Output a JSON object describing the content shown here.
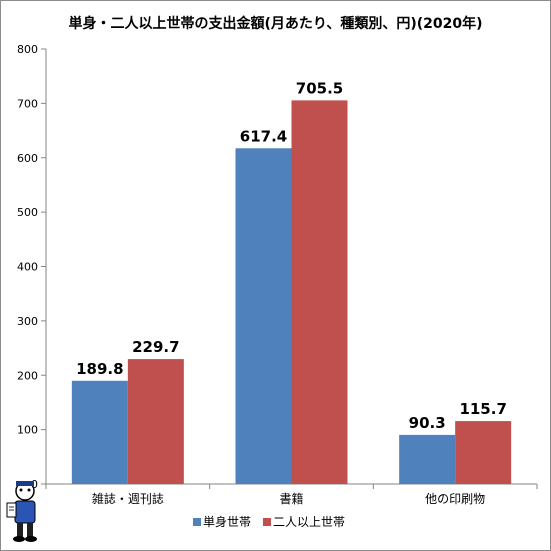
{
  "chart_data": {
    "type": "bar",
    "title": "単身・二人以上世帯の支出金額(月あたり、種類別、円)(2020年)",
    "categories": [
      "雑誌・週刊誌",
      "書籍",
      "他の印刷物"
    ],
    "series": [
      {
        "name": "単身世帯",
        "values": [
          189.8,
          617.4,
          90.3
        ],
        "color": "#4f81bd"
      },
      {
        "name": "二人以上世帯",
        "values": [
          229.7,
          705.5,
          115.7
        ],
        "color": "#c0504d"
      }
    ],
    "data_labels": [
      [
        "189.8",
        "617.4",
        "90.3"
      ],
      [
        "229.7",
        "705.5",
        "115.7"
      ]
    ],
    "ylim": [
      0,
      800
    ],
    "yticks": [
      0,
      100,
      200,
      300,
      400,
      500,
      600,
      700,
      800
    ],
    "xlabel": "",
    "ylabel": "",
    "grid": false,
    "legend_position": "bottom",
    "gridline_color": "#868686"
  },
  "logo": {
    "icon": "mascot-character-icon"
  }
}
